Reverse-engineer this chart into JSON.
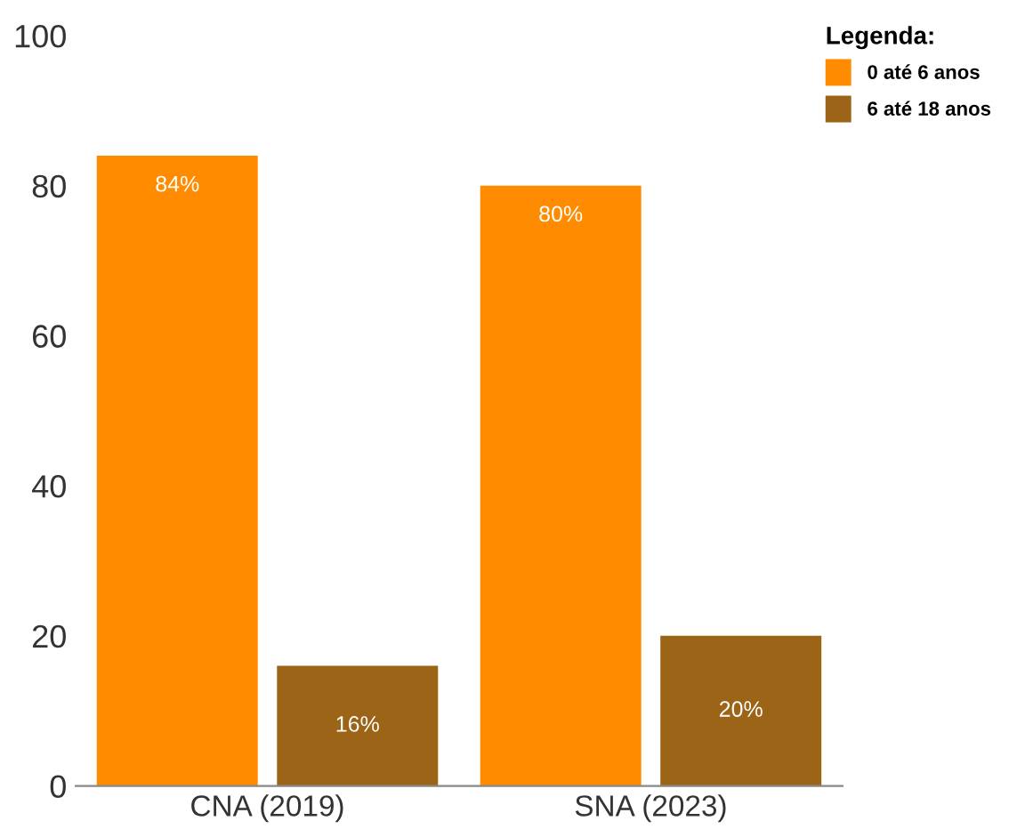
{
  "chart_data": {
    "type": "bar",
    "categories": [
      "CNA (2019)",
      "SNA (2023)"
    ],
    "series": [
      {
        "name": "0 até 6 anos",
        "color": "#ff8c00",
        "values": [
          84,
          80
        ],
        "value_labels": [
          "84%",
          "80%"
        ]
      },
      {
        "name": "6 até 18 anos",
        "color": "#9c6417",
        "values": [
          16,
          20
        ],
        "value_labels": [
          "16%",
          "20%"
        ]
      }
    ],
    "legend_title": "Legenda:",
    "legend": "top right",
    "ylim": [
      0,
      100
    ],
    "yticks": [
      0,
      20,
      40,
      60,
      80,
      100
    ],
    "grid": false
  }
}
